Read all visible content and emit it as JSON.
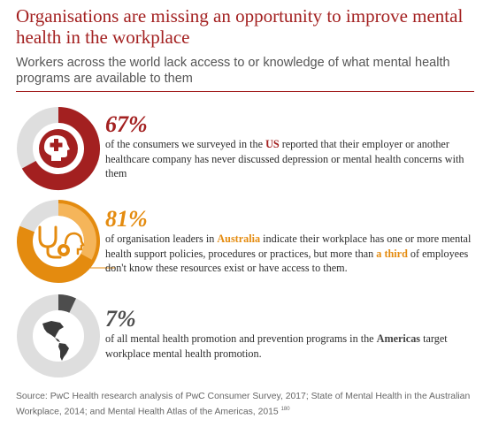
{
  "header": {
    "title": "Organisations are missing an opportunity to improve mental health in the workplace",
    "subtitle": "Workers across the world lack access to or knowledge of what mental health programs  are available to them"
  },
  "stats": [
    {
      "percent": "67%",
      "value": 0.67,
      "color": "#a32020",
      "icon": "head-with-medical-cross-icon",
      "text_before": "of the consumers we surveyed in the ",
      "highlight": "US",
      "text_after": " reported that their employer or another healthcare company has never discussed depression or mental health concerns with them"
    },
    {
      "percent": "81%",
      "value": 0.81,
      "inner_value": 0.33,
      "color": "#e48b0f",
      "icon": "stethoscope-head-icon",
      "text_before": "of organisation leaders in ",
      "highlight": "Australia",
      "text_middle": " indicate their workplace has one or more mental health support policies, procedures or practices, but more than ",
      "highlight2": "a third",
      "text_after": " of employees don't know these resources exist or have access to them."
    },
    {
      "percent": "7%",
      "value": 0.07,
      "color": "#4d4d4d",
      "icon": "americas-map-icon",
      "text_before": "of all mental health promotion and prevention programs in the ",
      "highlight": "Americas",
      "text_after": " target workplace mental health promotion."
    }
  ],
  "colors": {
    "accent": "#a32020",
    "orange": "#e48b0f",
    "dark": "#4d4d4d",
    "track": "#dedede"
  },
  "footer": {
    "source": "Source: PwC Health research analysis of PwC Consumer Survey, 2017; State of Mental Health in the Australian Workplace, 2014; and Mental Health Atlas of the Americas, 2015",
    "ref": "180"
  }
}
